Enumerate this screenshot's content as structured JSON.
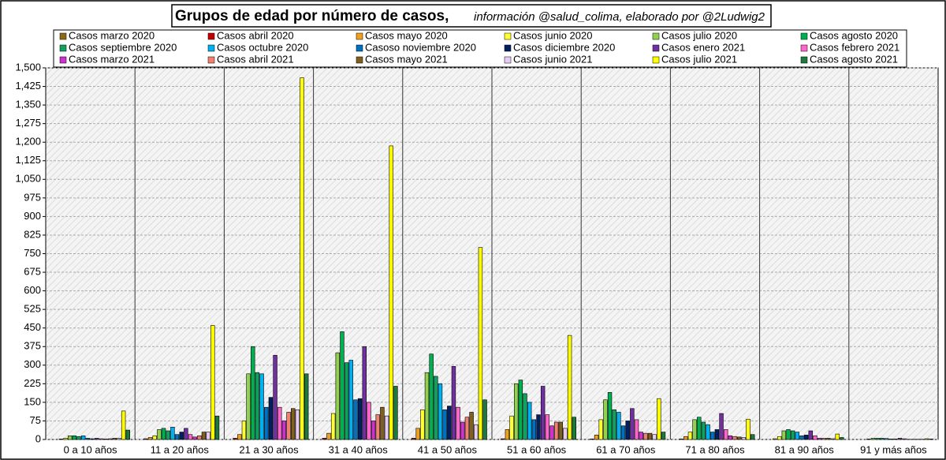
{
  "chart_data": {
    "type": "bar",
    "title": "Grupos de edad por número de casos,",
    "subtitle": "información @salud_colima, elaborado por @2Ludwig2",
    "categories": [
      "0 a 10 años",
      "11 a 20 años",
      "21 a 30 años",
      "31 a 40 años",
      "41 a 50 años",
      "51 a 60 años",
      "61 a 70 años",
      "71 a 80 años",
      "81 a 90 años",
      "91 y más años"
    ],
    "series": [
      {
        "name": "Casos marzo 2020",
        "color": "#8b6a1a",
        "values": [
          0,
          0,
          0,
          0,
          0,
          0,
          0,
          0,
          0,
          0
        ]
      },
      {
        "name": "Casos abril 2020",
        "color": "#c00000",
        "values": [
          0,
          3,
          5,
          5,
          5,
          3,
          2,
          2,
          0,
          0
        ]
      },
      {
        "name": "Casos mayo 2020",
        "color": "#f0a020",
        "values": [
          2,
          8,
          20,
          25,
          45,
          40,
          18,
          12,
          3,
          0
        ]
      },
      {
        "name": "Casos junio 2020",
        "color": "#ffff33",
        "values": [
          5,
          15,
          75,
          105,
          120,
          95,
          80,
          30,
          12,
          2
        ]
      },
      {
        "name": "Casos julio 2020",
        "color": "#92d050",
        "values": [
          15,
          40,
          265,
          350,
          270,
          225,
          160,
          80,
          35,
          5
        ]
      },
      {
        "name": "Casos agosto 2020",
        "color": "#00b050",
        "values": [
          15,
          45,
          375,
          435,
          345,
          240,
          190,
          90,
          40,
          5
        ]
      },
      {
        "name": "Casos septiembre 2020",
        "color": "#10a060",
        "values": [
          12,
          35,
          270,
          310,
          255,
          185,
          120,
          70,
          35,
          5
        ]
      },
      {
        "name": "Casos octubre 2020",
        "color": "#00b0f0",
        "values": [
          15,
          50,
          265,
          320,
          225,
          150,
          110,
          60,
          30,
          4
        ]
      },
      {
        "name": "Casoso noviembre 2020",
        "color": "#0070c0",
        "values": [
          5,
          20,
          130,
          160,
          120,
          80,
          55,
          30,
          15,
          2
        ]
      },
      {
        "name": "Casos diciembre 2020",
        "color": "#002060",
        "values": [
          3,
          30,
          170,
          165,
          135,
          100,
          75,
          40,
          18,
          2
        ]
      },
      {
        "name": "Casos enero 2021",
        "color": "#7030a0",
        "values": [
          5,
          45,
          340,
          375,
          295,
          215,
          125,
          105,
          35,
          5
        ]
      },
      {
        "name": "Casos febrero 2021",
        "color": "#ff66cc",
        "values": [
          3,
          20,
          130,
          150,
          130,
          100,
          80,
          40,
          15,
          3
        ]
      },
      {
        "name": "Casos marzo 2021",
        "color": "#cc33cc",
        "values": [
          2,
          10,
          75,
          75,
          70,
          55,
          30,
          15,
          5,
          1
        ]
      },
      {
        "name": "Casos abril 2021",
        "color": "#f08070",
        "values": [
          3,
          15,
          110,
          100,
          90,
          70,
          25,
          12,
          5,
          1
        ]
      },
      {
        "name": "Casos mayo 2021",
        "color": "#806020",
        "values": [
          5,
          30,
          125,
          130,
          110,
          70,
          25,
          10,
          5,
          1
        ]
      },
      {
        "name": "Casos junio 2021",
        "color": "#e6ccf2",
        "values": [
          5,
          30,
          120,
          95,
          60,
          45,
          20,
          8,
          3,
          1
        ]
      },
      {
        "name": "Casos julio 2021",
        "color": "#ffff00",
        "values": [
          115,
          460,
          1460,
          1185,
          775,
          420,
          165,
          82,
          22,
          3
        ]
      },
      {
        "name": "Casos agosto 2021",
        "color": "#1e7a3c",
        "values": [
          38,
          95,
          265,
          215,
          160,
          90,
          30,
          20,
          8,
          2
        ]
      }
    ],
    "ylim": [
      0,
      1500
    ],
    "yticks": [
      0,
      75,
      150,
      225,
      300,
      375,
      450,
      525,
      600,
      675,
      750,
      825,
      900,
      975,
      {
        "value": 1050,
        "label": "1,050"
      },
      {
        "value": 1125,
        "label": "1,125"
      },
      {
        "value": 1200,
        "label": "1,200"
      },
      {
        "value": 1275,
        "label": "1,275"
      },
      {
        "value": 1350,
        "label": "1,350"
      },
      {
        "value": 1425,
        "label": "1,425"
      },
      {
        "value": 1500,
        "label": "1,500"
      }
    ],
    "grid": true
  }
}
